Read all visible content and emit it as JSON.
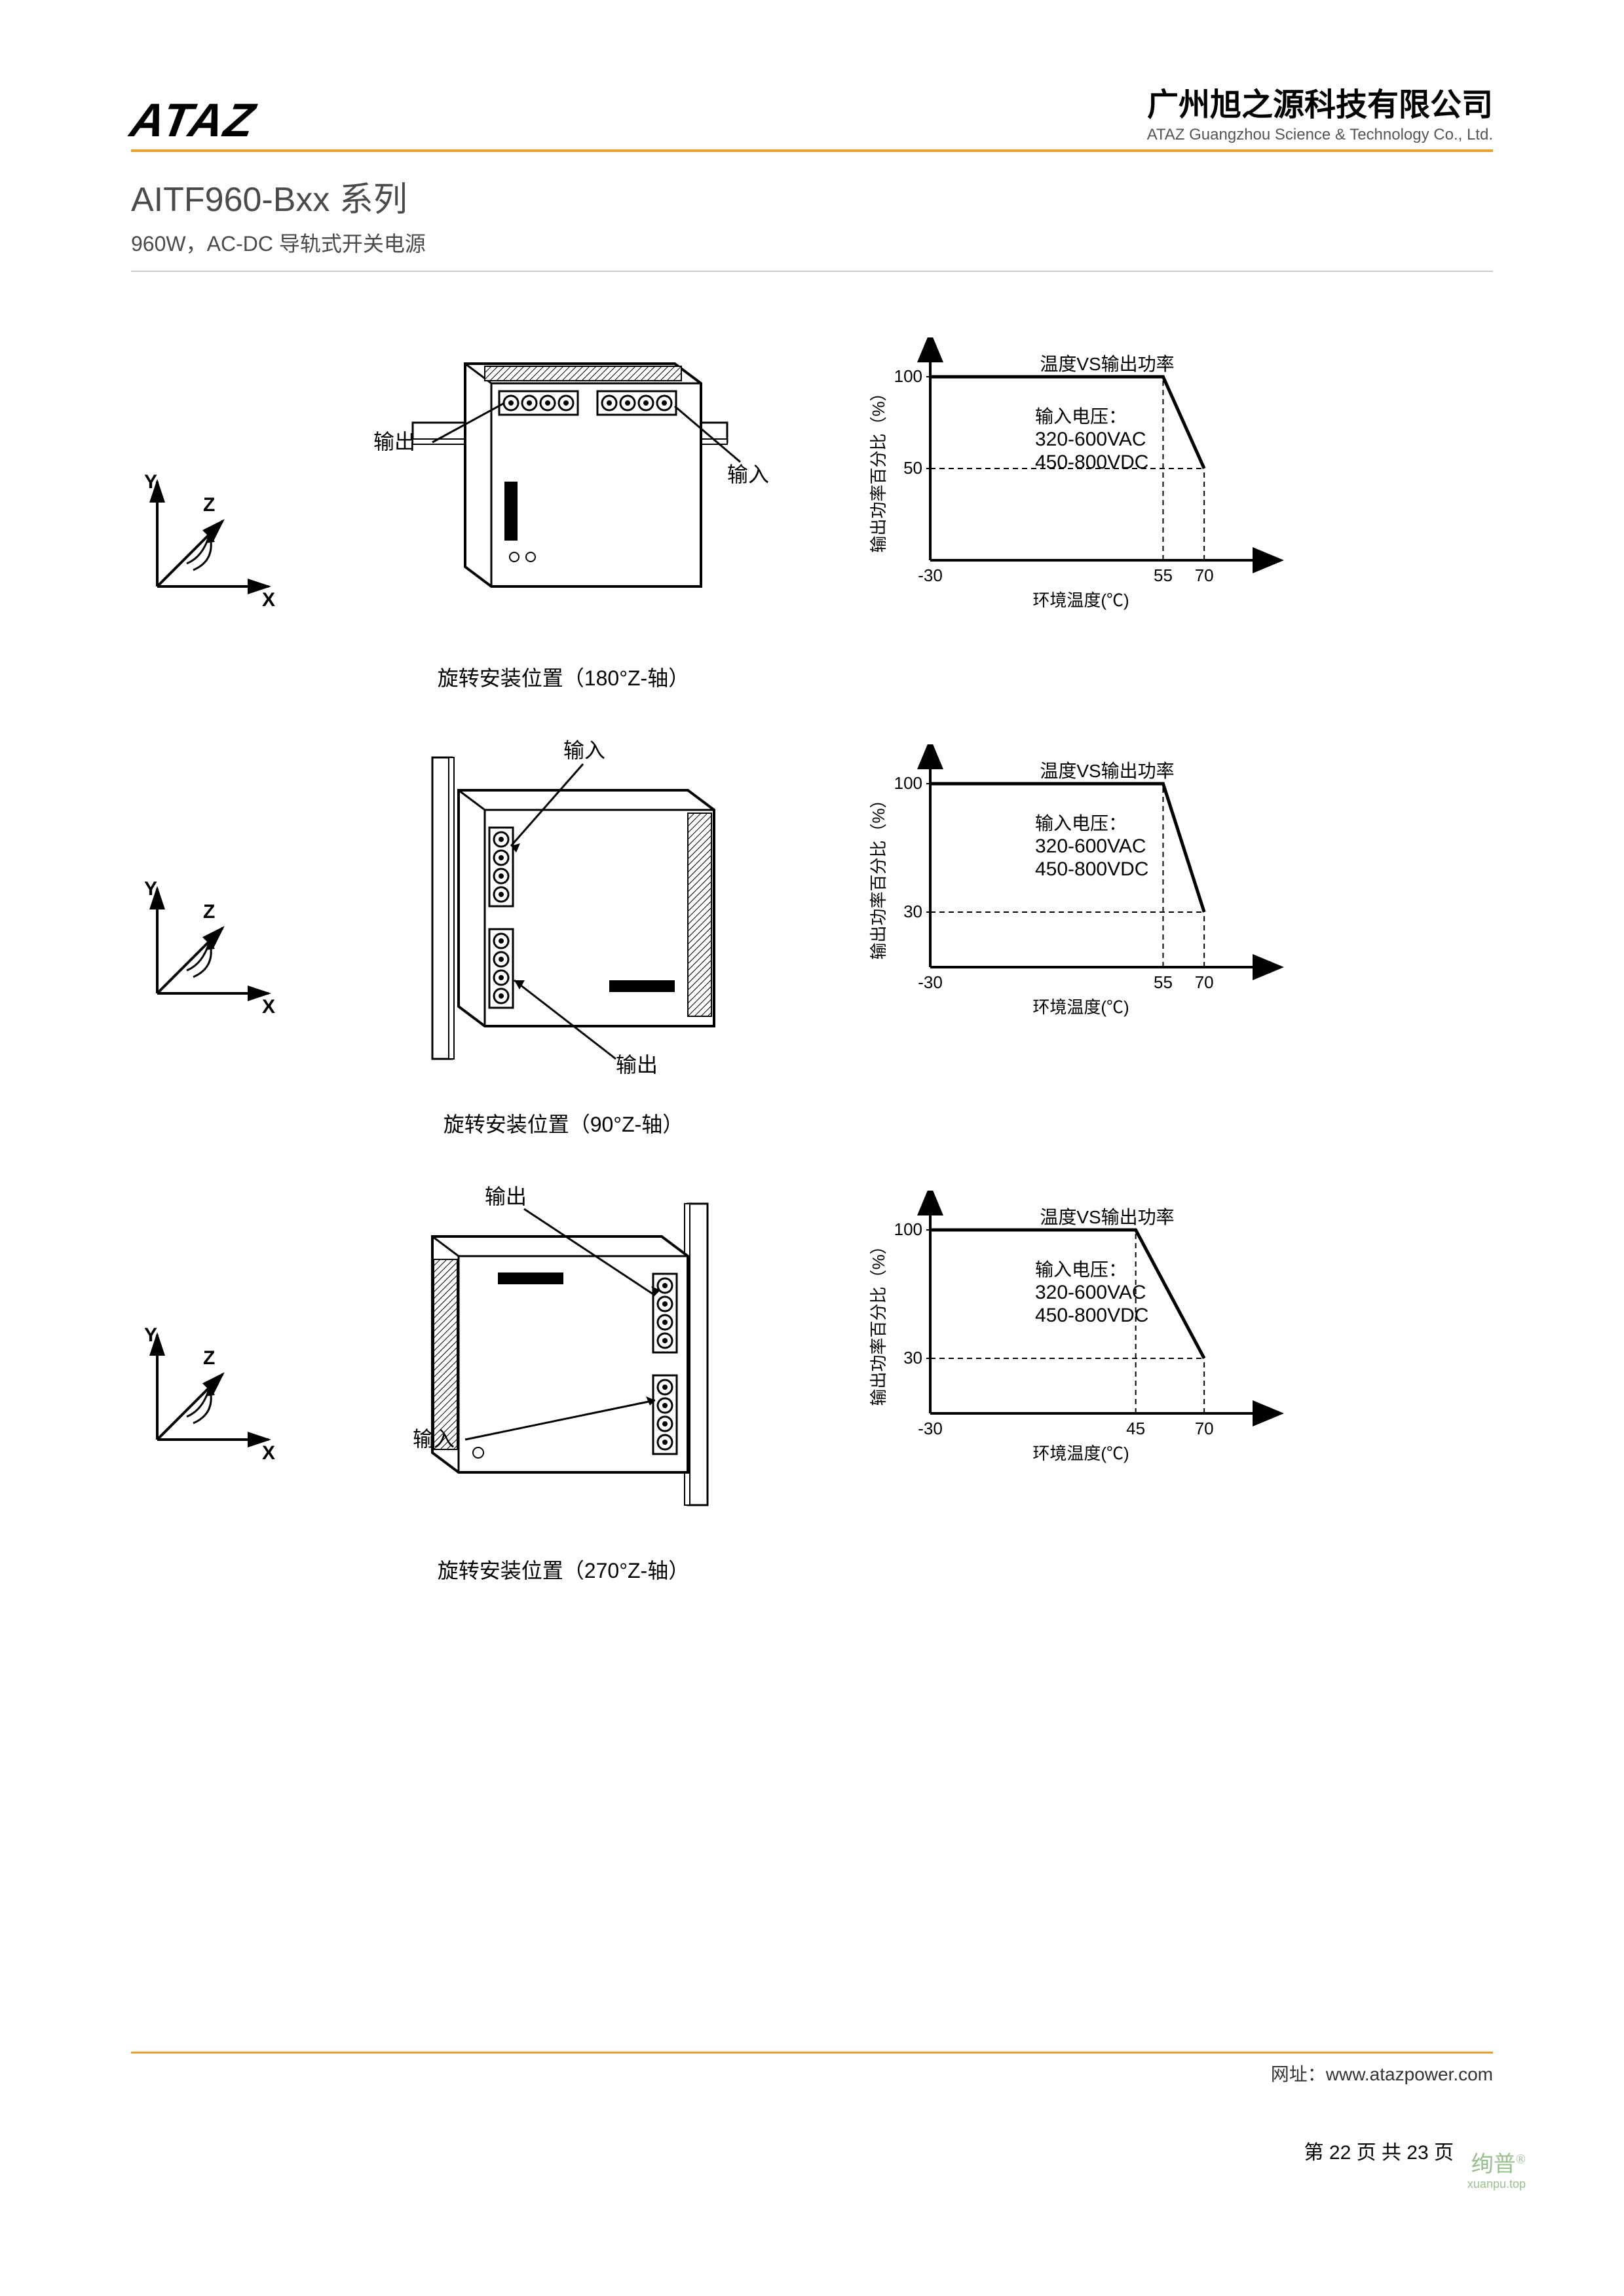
{
  "header": {
    "logo_text": "ATAZ",
    "company_cn": "广州旭之源科技有限公司",
    "company_en": "ATAZ Guangzhou Science & Technology Co., Ltd."
  },
  "title": {
    "series": "AITF960-Bxx 系列",
    "subtitle": "960W，AC-DC 导轨式开关电源"
  },
  "axis_labels": {
    "x": "X",
    "y": "Y",
    "z": "Z"
  },
  "rows": [
    {
      "device_labels": {
        "left": "输出",
        "right": "输入"
      },
      "caption": "旋转安装位置（180°Z-轴）",
      "chart": {
        "title": "温度VS输出功率",
        "ylabel": "输出功率百分比（%）",
        "xlabel": "环境温度(℃)",
        "voltage_label": "输入电压：",
        "voltage_line1": "320-600VAC",
        "voltage_line2": "450-800VDC",
        "y_ticks": [
          50,
          100
        ],
        "x_ticks": [
          -30,
          55,
          70
        ],
        "derate_start_x": 55,
        "derate_end_x": 70,
        "derate_end_y": 50,
        "colors": {
          "line": "#000000",
          "dash": "#000000",
          "bg": "#ffffff"
        },
        "line_width": 3
      }
    },
    {
      "device_labels": {
        "top": "输入",
        "bottom": "输出"
      },
      "caption": "旋转安装位置（90°Z-轴）",
      "chart": {
        "title": "温度VS输出功率",
        "ylabel": "输出功率百分比（%）",
        "xlabel": "环境温度(℃)",
        "voltage_label": "输入电压：",
        "voltage_line1": "320-600VAC",
        "voltage_line2": "450-800VDC",
        "y_ticks": [
          30,
          100
        ],
        "x_ticks": [
          -30,
          55,
          70
        ],
        "derate_start_x": 55,
        "derate_end_x": 70,
        "derate_end_y": 30,
        "colors": {
          "line": "#000000",
          "dash": "#000000",
          "bg": "#ffffff"
        },
        "line_width": 3
      }
    },
    {
      "device_labels": {
        "top": "输出",
        "bottom": "输入"
      },
      "caption": "旋转安装位置（270°Z-轴）",
      "chart": {
        "title": "温度VS输出功率",
        "ylabel": "输出功率百分比（%）",
        "xlabel": "环境温度(℃)",
        "voltage_label": "输入电压：",
        "voltage_line1": "320-600VAC",
        "voltage_line2": "450-800VDC",
        "y_ticks": [
          30,
          100
        ],
        "x_ticks": [
          -30,
          45,
          70
        ],
        "derate_start_x": 45,
        "derate_end_x": 70,
        "derate_end_y": 30,
        "colors": {
          "line": "#000000",
          "dash": "#000000",
          "bg": "#ffffff"
        },
        "line_width": 3
      }
    }
  ],
  "footer": {
    "url_label": "网址：",
    "url": "www.atazpower.com",
    "page_prefix": "第 ",
    "page_current": "22",
    "page_mid": " 页 共 ",
    "page_total": "23",
    "page_suffix": " 页",
    "watermark": "绚普",
    "watermark_sup": "®",
    "watermark_sub": "xuanpu.top"
  }
}
